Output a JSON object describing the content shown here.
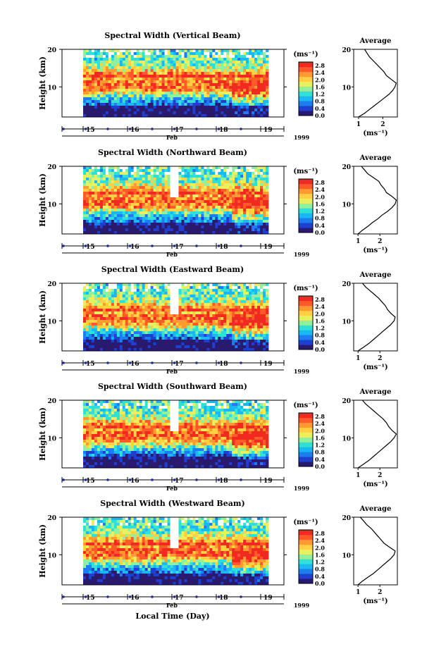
{
  "chart_data": [
    {
      "type": "heatmap",
      "title": "Spectral Width (Vertical Beam)",
      "ylabel": "Height (km)",
      "ylim": [
        2,
        20
      ],
      "y_ticks": [
        "20",
        "10"
      ],
      "x_ticks": [
        "15",
        "16",
        "17",
        "18",
        "19"
      ],
      "month_label": "Feb",
      "year_label": "1999",
      "colorbar": {
        "unit_label": "(ms⁻¹)",
        "ticks": [
          "2.8",
          "2.4",
          "2.0",
          "1.6",
          "1.2",
          "0.8",
          "0.4",
          "0.0"
        ],
        "range": [
          0,
          3.0
        ]
      },
      "avg_profile": {
        "title": "Average",
        "xlabel": "(ms⁻¹)",
        "x_ticks": [
          "1",
          "2"
        ],
        "xlim": [
          0.8,
          2.6
        ],
        "heights": [
          2,
          3,
          4,
          5,
          6,
          7,
          8,
          9,
          10,
          11,
          12,
          13,
          14,
          15,
          16,
          17,
          18,
          19,
          20
        ],
        "values": [
          1.0,
          1.25,
          1.45,
          1.65,
          1.85,
          2.05,
          2.25,
          2.4,
          2.5,
          2.55,
          2.35,
          2.15,
          2.05,
          1.9,
          1.75,
          1.6,
          1.45,
          1.35,
          1.25
        ]
      }
    },
    {
      "type": "heatmap",
      "title": "Spectral Width (Northward Beam)",
      "ylabel": "Height (km)",
      "ylim": [
        2,
        20
      ],
      "y_ticks": [
        "20",
        "10"
      ],
      "x_ticks": [
        "15",
        "16",
        "17",
        "18",
        "19"
      ],
      "month_label": "Feb",
      "year_label": "1999",
      "colorbar": {
        "unit_label": "(ms⁻¹)",
        "ticks": [
          "2.8",
          "2.4",
          "2.0",
          "1.6",
          "1.2",
          "0.8",
          "0.4",
          "0.0"
        ],
        "range": [
          0,
          3.0
        ]
      },
      "avg_profile": {
        "title": "Average",
        "xlabel": "(ms⁻¹)",
        "x_ticks": [
          "1",
          "2"
        ],
        "xlim": [
          0.8,
          2.8
        ],
        "heights": [
          2,
          3,
          4,
          5,
          6,
          7,
          8,
          9,
          10,
          11,
          12,
          13,
          14,
          15,
          16,
          17,
          18,
          19,
          20
        ],
        "values": [
          1.0,
          1.2,
          1.45,
          1.65,
          1.9,
          2.1,
          2.35,
          2.55,
          2.7,
          2.75,
          2.55,
          2.3,
          2.2,
          2.05,
          1.95,
          1.7,
          1.45,
          1.3,
          1.15
        ]
      }
    },
    {
      "type": "heatmap",
      "title": "Spectral Width (Eastward Beam)",
      "ylabel": "Height (km)",
      "ylim": [
        2,
        20
      ],
      "y_ticks": [
        "20",
        "10"
      ],
      "x_ticks": [
        "15",
        "16",
        "17",
        "18",
        "19"
      ],
      "month_label": "Feb",
      "year_label": "1999",
      "colorbar": {
        "unit_label": "(ms⁻¹)",
        "ticks": [
          "2.8",
          "2.4",
          "2.0",
          "1.6",
          "1.2",
          "0.8",
          "0.4",
          "0.0"
        ],
        "range": [
          0,
          3.0
        ]
      },
      "avg_profile": {
        "title": "Average",
        "xlabel": "(ms⁻¹)",
        "x_ticks": [
          "1",
          "2"
        ],
        "xlim": [
          0.8,
          2.8
        ],
        "heights": [
          2,
          3,
          4,
          5,
          6,
          7,
          8,
          9,
          10,
          11,
          12,
          13,
          14,
          15,
          16,
          17,
          18,
          19,
          20
        ],
        "values": [
          1.0,
          1.25,
          1.5,
          1.7,
          1.9,
          2.1,
          2.3,
          2.5,
          2.65,
          2.7,
          2.5,
          2.35,
          2.25,
          2.1,
          1.95,
          1.75,
          1.55,
          1.35,
          1.2
        ]
      }
    },
    {
      "type": "heatmap",
      "title": "Spectral Width (Southward Beam)",
      "ylabel": "Height (km)",
      "ylim": [
        2,
        20
      ],
      "y_ticks": [
        "20",
        "10"
      ],
      "x_ticks": [
        "15",
        "16",
        "17",
        "18",
        "19"
      ],
      "month_label": "Feb",
      "year_label": "1999",
      "colorbar": {
        "unit_label": "(ms⁻¹)",
        "ticks": [
          "2.8",
          "2.4",
          "2.0",
          "1.6",
          "1.2",
          "0.8",
          "0.4",
          "0.0"
        ],
        "range": [
          0,
          3.0
        ]
      },
      "avg_profile": {
        "title": "Average",
        "xlabel": "(ms⁻¹)",
        "x_ticks": [
          "1",
          "2"
        ],
        "xlim": [
          0.8,
          2.8
        ],
        "heights": [
          2,
          3,
          4,
          5,
          6,
          7,
          8,
          9,
          10,
          11,
          12,
          13,
          14,
          15,
          16,
          17,
          18,
          19,
          20
        ],
        "values": [
          1.0,
          1.25,
          1.5,
          1.7,
          1.9,
          2.1,
          2.3,
          2.5,
          2.65,
          2.75,
          2.55,
          2.4,
          2.3,
          2.15,
          1.95,
          1.75,
          1.55,
          1.35,
          1.2
        ]
      }
    },
    {
      "type": "heatmap",
      "title": "Spectral Width (Westward Beam)",
      "ylabel": "Height (km)",
      "ylim": [
        2,
        20
      ],
      "y_ticks": [
        "20",
        "10"
      ],
      "x_ticks": [
        "15",
        "16",
        "17",
        "18",
        "19"
      ],
      "month_label": "Feb",
      "year_label": "1999",
      "colorbar": {
        "unit_label": "(ms⁻¹)",
        "ticks": [
          "2.8",
          "2.4",
          "2.0",
          "1.6",
          "1.2",
          "0.8",
          "0.4",
          "0.0"
        ],
        "range": [
          0,
          3.0
        ]
      },
      "avg_profile": {
        "title": "Average",
        "xlabel": "(ms⁻¹)",
        "x_ticks": [
          "1",
          "2"
        ],
        "xlim": [
          0.8,
          2.8
        ],
        "heights": [
          2,
          3,
          4,
          5,
          6,
          7,
          8,
          9,
          10,
          11,
          12,
          13,
          14,
          15,
          16,
          17,
          18,
          19,
          20
        ],
        "values": [
          1.0,
          1.2,
          1.45,
          1.7,
          1.9,
          2.1,
          2.3,
          2.5,
          2.65,
          2.7,
          2.45,
          2.2,
          2.05,
          1.9,
          1.75,
          1.6,
          1.4,
          1.25,
          1.1
        ]
      }
    }
  ],
  "figure": {
    "xlabel": "Local Time (Day)",
    "colormap": [
      "#2a1a6e",
      "#1f3fd0",
      "#1e7cf0",
      "#19b8f5",
      "#2fe0d8",
      "#8ff0a0",
      "#e8f060",
      "#ffd040",
      "#ff9a30",
      "#ff5a28",
      "#f02a20"
    ]
  }
}
